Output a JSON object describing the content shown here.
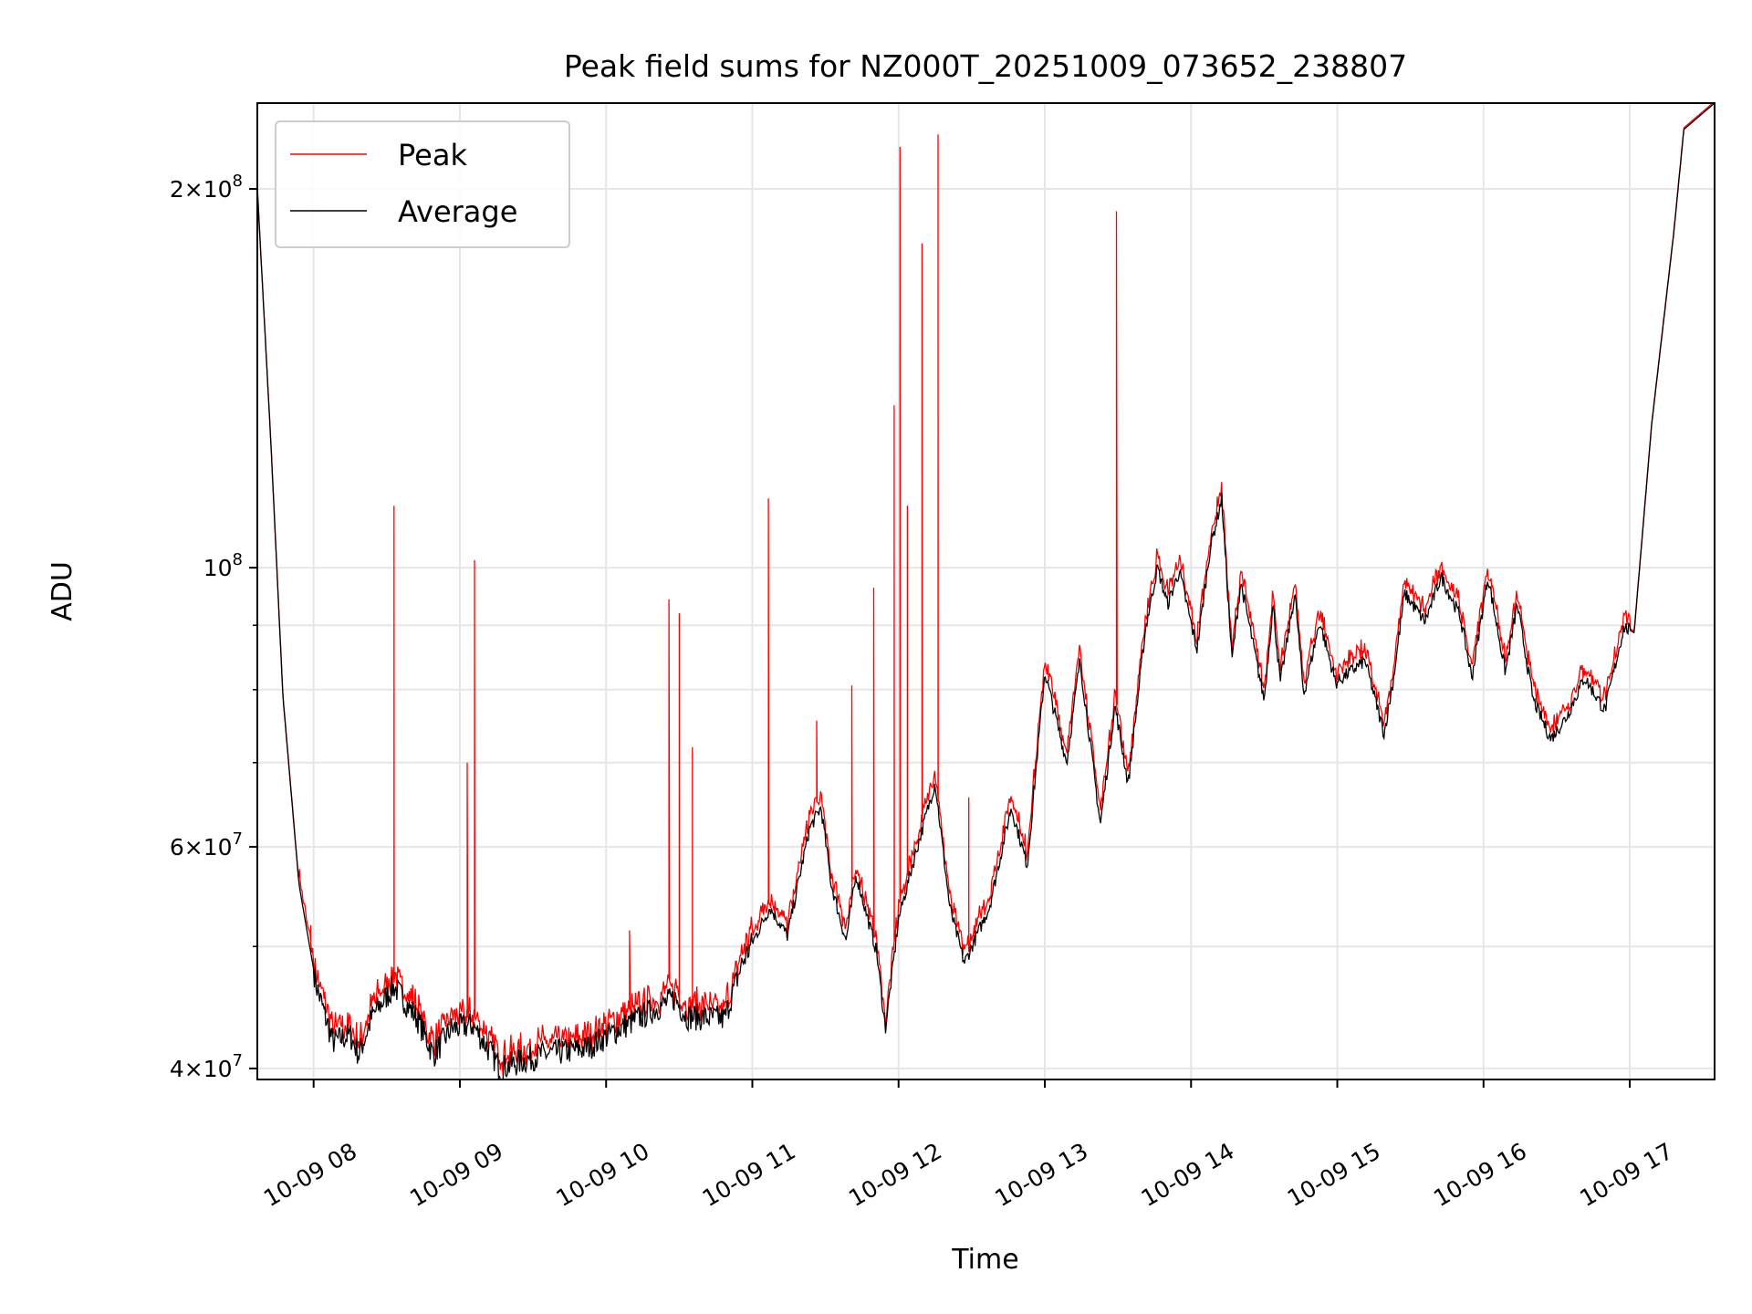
{
  "chart_data": {
    "type": "line",
    "title": "Peak field sums for NZ000T_20251009_073652_238807",
    "xlabel": "Time",
    "ylabel": "ADU",
    "yscale": "log",
    "x_units": "hour of day 2025-10-09",
    "y_units": "millions of ADU",
    "xlim": [
      7.615,
      17.58
    ],
    "ylim": [
      39.2,
      234
    ],
    "grid": true,
    "legend_position": "upper-left",
    "x_ticks": [
      {
        "value": 8,
        "label": "10-09 08"
      },
      {
        "value": 9,
        "label": "10-09 09"
      },
      {
        "value": 10,
        "label": "10-09 10"
      },
      {
        "value": 11,
        "label": "10-09 11"
      },
      {
        "value": 12,
        "label": "10-09 12"
      },
      {
        "value": 13,
        "label": "10-09 13"
      },
      {
        "value": 14,
        "label": "10-09 14"
      },
      {
        "value": 15,
        "label": "10-09 15"
      },
      {
        "value": 16,
        "label": "10-09 16"
      },
      {
        "value": 17,
        "label": "10-09 17"
      }
    ],
    "y_ticks": [
      {
        "value": 200,
        "mantissa": "2×10",
        "exp": "8"
      },
      {
        "value": 100,
        "mantissa": "10",
        "exp": "8"
      },
      {
        "value": 60,
        "mantissa": "6×10",
        "exp": "7"
      },
      {
        "value": 40,
        "mantissa": "4×10",
        "exp": "7"
      }
    ],
    "y_minor_ticks": [
      50,
      70,
      80,
      90
    ],
    "series": [
      {
        "name": "Peak",
        "color": "#ff0000",
        "relative_offset": 0.02,
        "spikes": [
          [
            7.98,
            52
          ],
          [
            8.55,
            112
          ],
          [
            9.05,
            70
          ],
          [
            9.1,
            101.4
          ],
          [
            10.16,
            51.5
          ],
          [
            10.43,
            94.4
          ],
          [
            10.5,
            92
          ],
          [
            10.59,
            72
          ],
          [
            11.11,
            113.5
          ],
          [
            11.44,
            75.6
          ],
          [
            11.68,
            80.6
          ],
          [
            11.83,
            96.4
          ],
          [
            11.97,
            134.6
          ],
          [
            12.01,
            216
          ],
          [
            12.06,
            112
          ],
          [
            12.16,
            181
          ],
          [
            12.27,
            221
          ],
          [
            12.48,
            65.7
          ],
          [
            13.49,
            192
          ]
        ]
      },
      {
        "name": "Average",
        "color": "#000000",
        "points": [
          [
            7.615,
            200
          ],
          [
            7.71,
            124
          ],
          [
            7.79,
            79
          ],
          [
            7.9,
            56
          ],
          [
            8.02,
            46.5
          ],
          [
            8.13,
            42
          ],
          [
            8.25,
            42.5
          ],
          [
            8.31,
            41
          ],
          [
            8.4,
            44
          ],
          [
            8.55,
            46.5
          ],
          [
            8.71,
            43.8
          ],
          [
            8.82,
            41
          ],
          [
            8.94,
            43
          ],
          [
            9.09,
            43.3
          ],
          [
            9.28,
            40
          ],
          [
            9.55,
            41
          ],
          [
            9.86,
            41.5
          ],
          [
            10.09,
            43
          ],
          [
            10.32,
            44.5
          ],
          [
            10.47,
            45.5
          ],
          [
            10.55,
            44
          ],
          [
            10.81,
            43.8
          ],
          [
            10.93,
            48.5
          ],
          [
            11.12,
            53.7
          ],
          [
            11.24,
            51
          ],
          [
            11.39,
            62
          ],
          [
            11.47,
            64.5
          ],
          [
            11.54,
            56
          ],
          [
            11.64,
            50.5
          ],
          [
            11.71,
            57
          ],
          [
            11.85,
            49.5
          ],
          [
            11.91,
            43
          ],
          [
            12.0,
            52.6
          ],
          [
            12.12,
            59.5
          ],
          [
            12.25,
            67.5
          ],
          [
            12.35,
            53.7
          ],
          [
            12.45,
            48.5
          ],
          [
            12.62,
            53.7
          ],
          [
            12.77,
            64.5
          ],
          [
            12.88,
            58
          ],
          [
            13.0,
            82.6
          ],
          [
            13.15,
            70
          ],
          [
            13.24,
            84.4
          ],
          [
            13.38,
            62.5
          ],
          [
            13.48,
            77.7
          ],
          [
            13.57,
            67.3
          ],
          [
            13.69,
            89.7
          ],
          [
            13.77,
            100
          ],
          [
            13.84,
            93.5
          ],
          [
            13.92,
            99.4
          ],
          [
            14.04,
            86.1
          ],
          [
            14.13,
            103.5
          ],
          [
            14.21,
            113.5
          ],
          [
            14.28,
            84.4
          ],
          [
            14.34,
            97.4
          ],
          [
            14.5,
            78.5
          ],
          [
            14.56,
            93.5
          ],
          [
            14.61,
            81
          ],
          [
            14.71,
            95.4
          ],
          [
            14.77,
            79.3
          ],
          [
            14.88,
            90.6
          ],
          [
            14.99,
            81
          ],
          [
            15.19,
            84.4
          ],
          [
            15.32,
            73.8
          ],
          [
            15.38,
            81
          ],
          [
            15.46,
            95.4
          ],
          [
            15.6,
            90.6
          ],
          [
            15.71,
            98.4
          ],
          [
            15.84,
            91.5
          ],
          [
            15.92,
            81.8
          ],
          [
            16.03,
            98.4
          ],
          [
            16.15,
            82.6
          ],
          [
            16.23,
            93.5
          ],
          [
            16.34,
            78.5
          ],
          [
            16.46,
            73.1
          ],
          [
            16.57,
            76.2
          ],
          [
            16.69,
            81.8
          ],
          [
            16.83,
            77
          ],
          [
            16.96,
            89.7
          ],
          [
            17.03,
            88.8
          ],
          [
            17.15,
            130
          ],
          [
            17.3,
            184
          ],
          [
            17.37,
            223
          ],
          [
            17.58,
            234
          ]
        ]
      }
    ]
  }
}
